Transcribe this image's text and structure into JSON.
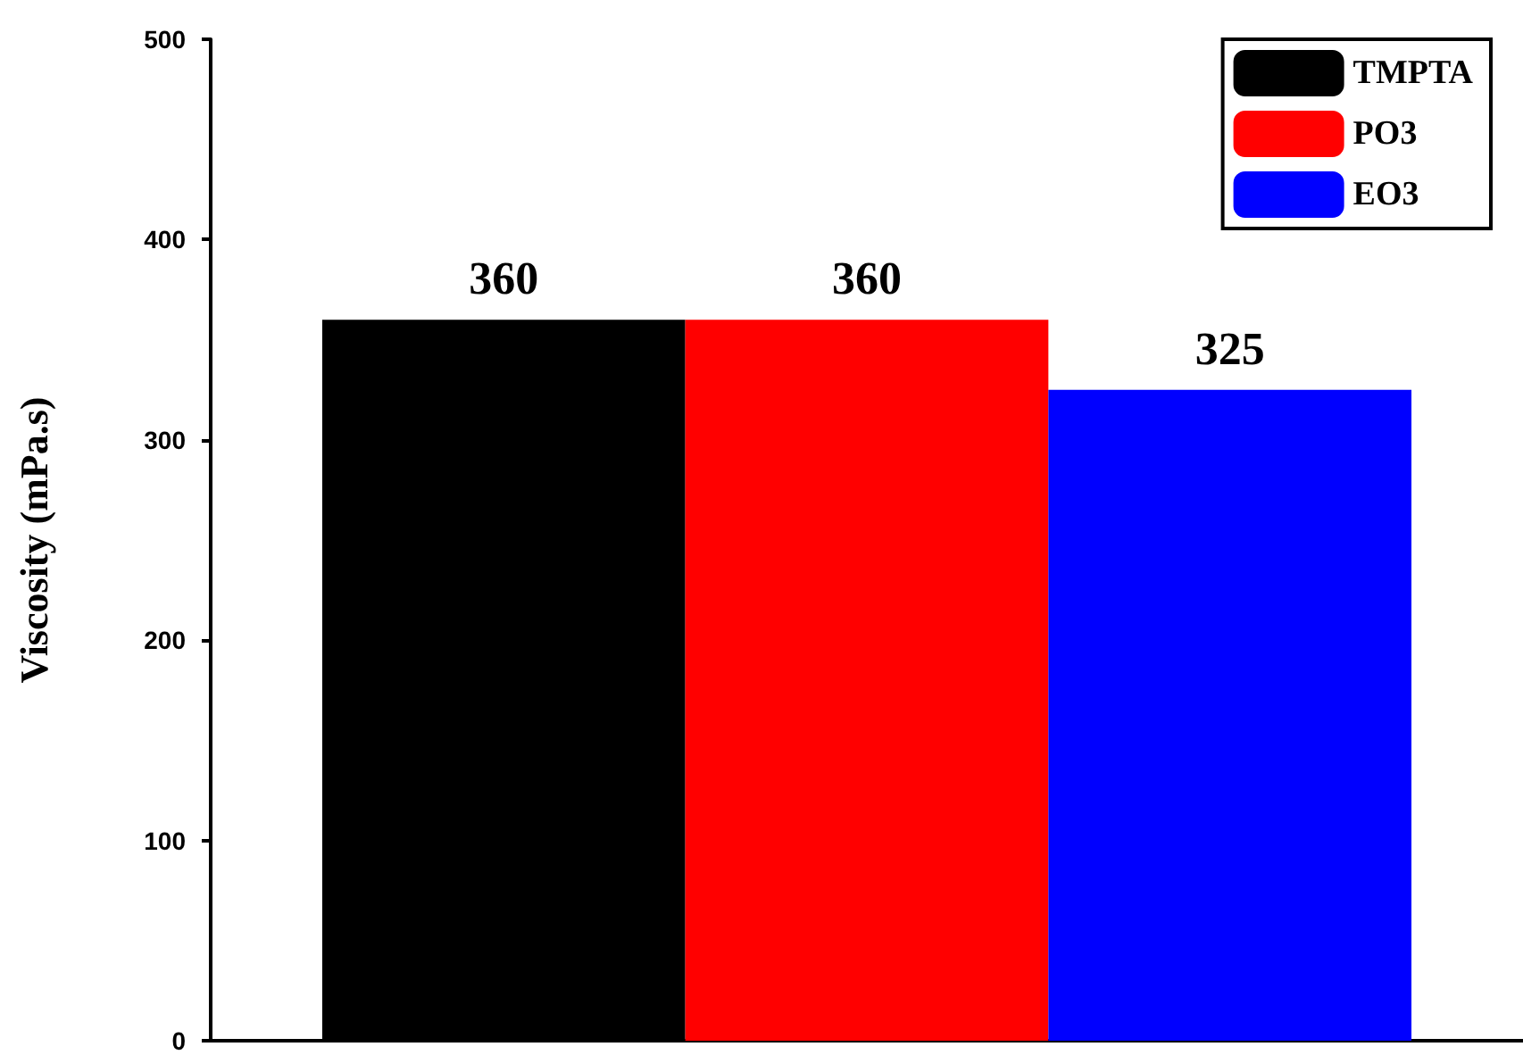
{
  "chart_data": {
    "type": "bar",
    "ylabel": "Viscosity (mPa.s)",
    "categories": [
      null
    ],
    "series": [
      {
        "name": "TMPTA",
        "color": "#000000",
        "values": [
          360
        ]
      },
      {
        "name": "PO3",
        "color": "#ff0000",
        "values": [
          360
        ]
      },
      {
        "name": "EO3",
        "color": "#0000ff",
        "values": [
          325
        ]
      }
    ],
    "ylim": [
      0,
      500
    ],
    "yticks": [
      0,
      100,
      200,
      300,
      400,
      500
    ],
    "data_labels": true,
    "legend": "top right",
    "grid": false
  }
}
